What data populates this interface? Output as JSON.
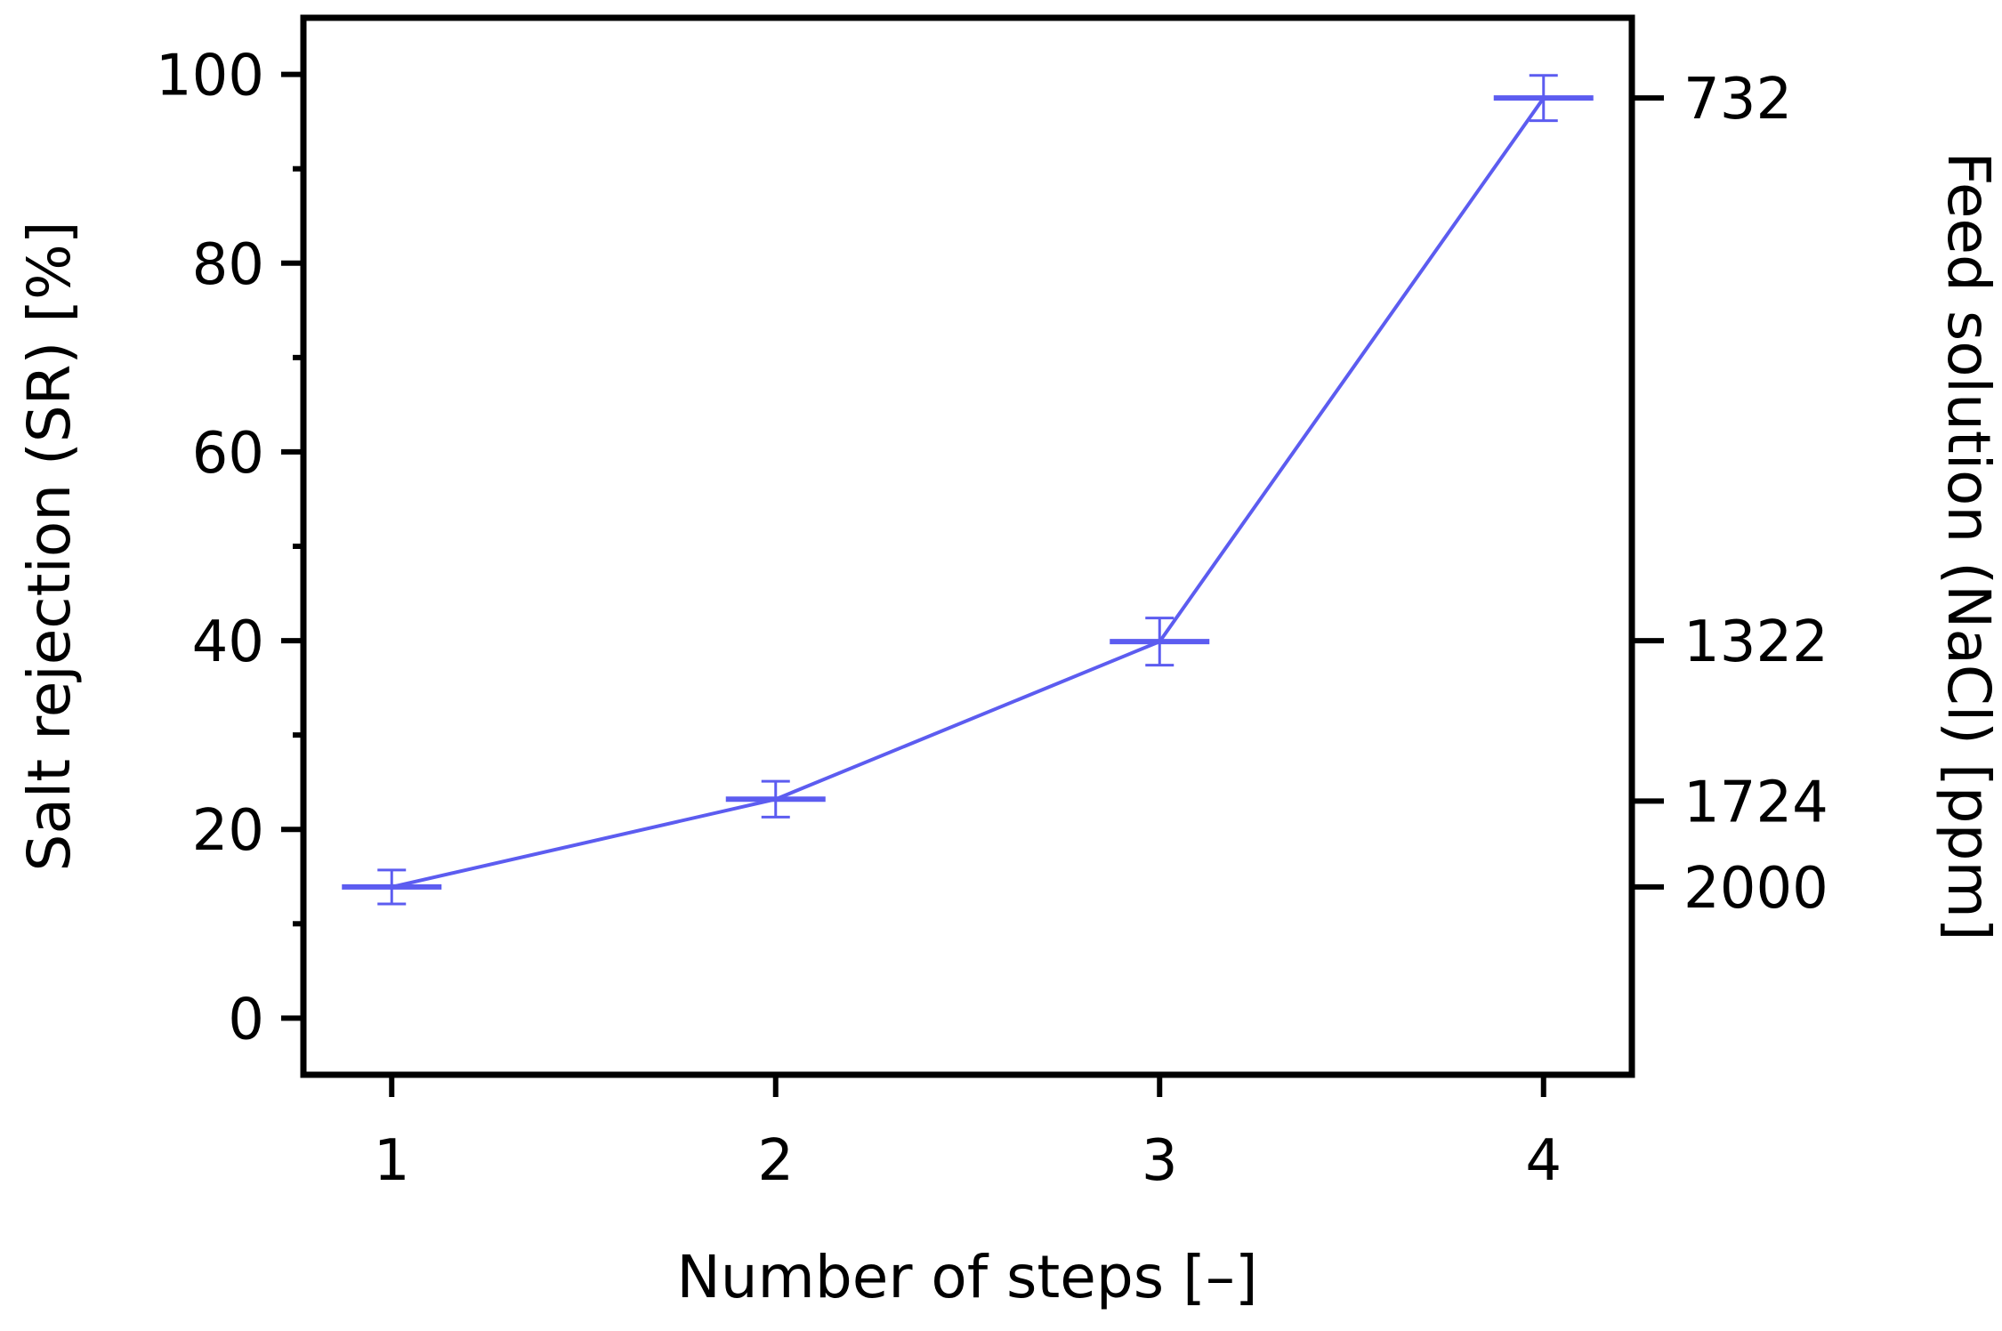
{
  "colors": {
    "series": "#5c5cf0",
    "axis": "#000000",
    "background": "#ffffff"
  },
  "chart_data": {
    "type": "line",
    "title": "",
    "xlabel": "Number of steps [–]",
    "ylabel": "Salt rejection (SR) [%]",
    "y2label": "Feed solution (NaCl) [ppm]",
    "xlim": [
      0.77,
      4.23
    ],
    "ylim": [
      -6,
      106
    ],
    "x_ticks": [
      1,
      2,
      3,
      4
    ],
    "x_tick_labels": [
      "1",
      "2",
      "3",
      "4"
    ],
    "y_ticks": [
      0,
      20,
      40,
      60,
      80,
      100
    ],
    "y_tick_labels": [
      "0",
      "20",
      "40",
      "60",
      "80",
      "100"
    ],
    "y_minor_ticks": [
      10,
      30,
      50,
      70,
      90
    ],
    "y2_ticks": [
      {
        "label": "732",
        "at_sr": 97.5
      },
      {
        "label": "1322",
        "at_sr": 40
      },
      {
        "label": "1724",
        "at_sr": 23
      },
      {
        "label": "2000",
        "at_sr": 13.9
      }
    ],
    "grid": false,
    "legend": "none",
    "series": [
      {
        "x": [
          1,
          2,
          3,
          4
        ],
        "y": [
          13.9,
          23.2,
          39.9,
          97.5
        ],
        "err": [
          1.8,
          1.9,
          2.5,
          2.4
        ]
      }
    ]
  }
}
